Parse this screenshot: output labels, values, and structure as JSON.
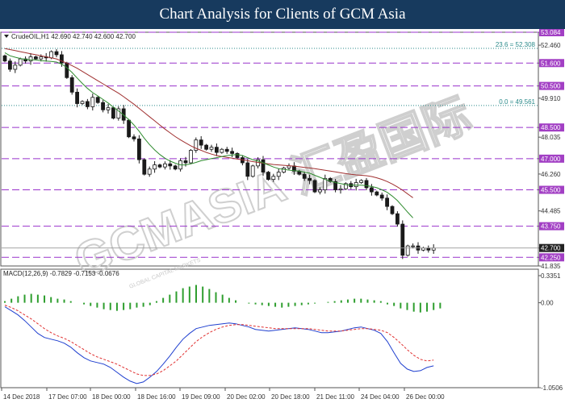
{
  "header": {
    "title": "Chart Analysis for Clients of GCM Asia"
  },
  "watermark": {
    "text": "GCMASIA 汇盈国际",
    "subtext": "GLOBAL CAPITAL MARKETS"
  },
  "colors": {
    "candle": "#1a1a1a",
    "ma_fast": "#2e8b2e",
    "ma_slow": "#a03030",
    "sr_line": "#9933cc",
    "sr_label_bg": "#a23fc4",
    "fib_line": "#2a8a8a",
    "price_label_bg": "#222222",
    "macd_hist": "#2e9e2e",
    "macd_line": "#1f3fcf",
    "macd_signal": "#e03030"
  },
  "chart_data": [
    {
      "type": "candlestick",
      "title": "CrudeOIL,H1  42.690 42.740 42.600 42.700",
      "ylim": [
        41.835,
        53.084
      ],
      "y_ticks": [
        "53.084",
        "52.460",
        "51.600",
        "50.500",
        "49.910",
        "48.500",
        "48.035",
        "47.000",
        "46.260",
        "45.500",
        "44.485",
        "43.750",
        "42.700",
        "42.250",
        "41.835"
      ],
      "x_labels": [
        "14 Dec 2018",
        "17 Dec 07:00",
        "18 Dec 00:00",
        "18 Dec 16:00",
        "19 Dec 09:00",
        "20 Dec 02:00",
        "20 Dec 18:00",
        "21 Dec 11:00",
        "24 Dec 04:00",
        "26 Dec 00:00"
      ],
      "support_resistance": [
        {
          "value": 53.084,
          "label": "53.084"
        },
        {
          "value": 51.6,
          "label": "51.600"
        },
        {
          "value": 50.5,
          "label": "50.500"
        },
        {
          "value": 48.5,
          "label": "48.500"
        },
        {
          "value": 47.0,
          "label": "47.000"
        },
        {
          "value": 45.5,
          "label": "45.500"
        },
        {
          "value": 43.75,
          "label": "43.750"
        },
        {
          "value": 42.25,
          "label": "42.250"
        }
      ],
      "fibonacci": [
        {
          "value": 52.308,
          "label": "23.6 = 52.308"
        },
        {
          "value": 49.561,
          "label": "0.0 = 49.561"
        }
      ],
      "current_price": {
        "value": 42.7,
        "label": "42.700"
      },
      "close": [
        51.7,
        51.3,
        51.5,
        51.8,
        51.7,
        51.9,
        51.8,
        51.9,
        51.85,
        52.15,
        52.0,
        51.6,
        50.9,
        50.2,
        49.65,
        49.75,
        49.5,
        49.95,
        49.7,
        49.35,
        49.45,
        48.95,
        49.4,
        48.85,
        48.05,
        47.95,
        46.95,
        46.25,
        46.5,
        46.7,
        46.6,
        46.75,
        46.65,
        46.5,
        46.9,
        46.8,
        47.4,
        47.9,
        47.65,
        47.45,
        47.55,
        47.3,
        47.45,
        47.35,
        47.25,
        47.05,
        46.8,
        46.15,
        46.65,
        46.95,
        46.35,
        46.0,
        46.15,
        46.35,
        46.55,
        46.65,
        46.4,
        46.25,
        46.05,
        45.95,
        45.4,
        45.5,
        46.05,
        45.9,
        45.5,
        45.55,
        45.8,
        45.65,
        45.85,
        45.95,
        45.6,
        45.4,
        45.25,
        45.1,
        44.7,
        44.35,
        43.85,
        42.35,
        42.8,
        42.8,
        42.6,
        42.7,
        42.6,
        42.7
      ],
      "ma_fast": [
        52.1,
        51.95,
        51.88,
        51.82,
        51.78,
        51.76,
        51.75,
        51.72,
        51.7,
        51.68,
        51.65,
        51.55,
        51.38,
        51.15,
        50.88,
        50.62,
        50.38,
        50.18,
        50.02,
        49.85,
        49.68,
        49.48,
        49.3,
        49.1,
        48.88,
        48.62,
        48.32,
        47.98,
        47.68,
        47.42,
        47.2,
        47.02,
        46.88,
        46.78,
        46.7,
        46.7,
        46.75,
        46.82,
        46.9,
        46.95,
        47.0,
        47.05,
        47.1,
        47.15,
        47.18,
        47.2,
        47.15,
        47.05,
        46.95,
        46.88,
        46.8,
        46.7,
        46.6,
        46.52,
        46.48,
        46.45,
        46.42,
        46.4,
        46.35,
        46.3,
        46.2,
        46.1,
        46.0,
        45.92,
        45.85,
        45.8,
        45.75,
        45.72,
        45.72,
        45.72,
        45.7,
        45.66,
        45.6,
        45.5,
        45.38,
        45.2,
        44.98,
        44.7,
        44.42,
        44.15
      ],
      "ma_slow": [
        52.3,
        52.25,
        52.2,
        52.15,
        52.1,
        52.05,
        52.0,
        51.95,
        51.9,
        51.85,
        51.8,
        51.7,
        51.6,
        51.48,
        51.35,
        51.2,
        51.05,
        50.9,
        50.75,
        50.6,
        50.45,
        50.3,
        50.15,
        49.98,
        49.8,
        49.62,
        49.42,
        49.22,
        49.02,
        48.82,
        48.62,
        48.42,
        48.24,
        48.06,
        47.9,
        47.76,
        47.62,
        47.5,
        47.4,
        47.3,
        47.22,
        47.15,
        47.1,
        47.06,
        47.02,
        46.98,
        46.94,
        46.9,
        46.86,
        46.82,
        46.78,
        46.75,
        46.72,
        46.7,
        46.68,
        46.66,
        46.64,
        46.61,
        46.58,
        46.55,
        46.52,
        46.48,
        46.44,
        46.4,
        46.36,
        46.32,
        46.28,
        46.25,
        46.22,
        46.2,
        46.18,
        46.14,
        46.08,
        46.0,
        45.9,
        45.78,
        45.64,
        45.48,
        45.3,
        45.12
      ]
    },
    {
      "type": "macd",
      "title": "MACD(12,26,9) -0.7829 -0.7153 -0.0676",
      "ylim": [
        -1.0506,
        0.3351
      ],
      "y_ticks": [
        "0.3351",
        "0.00",
        "-1.0506"
      ],
      "histogram": [
        0.02,
        0.05,
        0.08,
        0.1,
        0.11,
        0.1,
        0.09,
        0.07,
        0.05,
        0.04,
        0.02,
        0.0,
        -0.02,
        -0.04,
        -0.06,
        -0.08,
        -0.09,
        -0.1,
        -0.09,
        -0.08,
        -0.06,
        -0.05,
        -0.03,
        0.02,
        0.06,
        0.1,
        0.14,
        0.18,
        0.2,
        0.22,
        0.2,
        0.17,
        0.13,
        0.1,
        0.06,
        0.03,
        0.0,
        -0.01,
        -0.02,
        -0.03,
        -0.04,
        -0.05,
        -0.06,
        -0.05,
        -0.04,
        -0.03,
        -0.02,
        -0.01,
        0.0,
        0.01,
        0.02,
        0.03,
        0.04,
        0.05,
        0.05,
        0.04,
        0.03,
        0.02,
        -0.02,
        -0.04,
        -0.07,
        -0.09,
        -0.11,
        -0.12,
        -0.11,
        -0.09,
        -0.07
      ],
      "macd": [
        -0.05,
        -0.1,
        -0.15,
        -0.22,
        -0.3,
        -0.38,
        -0.43,
        -0.45,
        -0.47,
        -0.5,
        -0.55,
        -0.62,
        -0.68,
        -0.72,
        -0.74,
        -0.76,
        -0.8,
        -0.86,
        -0.92,
        -0.97,
        -1.0,
        -0.98,
        -0.92,
        -0.85,
        -0.76,
        -0.66,
        -0.55,
        -0.45,
        -0.38,
        -0.32,
        -0.3,
        -0.28,
        -0.27,
        -0.26,
        -0.25,
        -0.26,
        -0.28,
        -0.3,
        -0.33,
        -0.34,
        -0.35,
        -0.34,
        -0.33,
        -0.32,
        -0.31,
        -0.32,
        -0.33,
        -0.35,
        -0.37,
        -0.37,
        -0.36,
        -0.35,
        -0.33,
        -0.31,
        -0.3,
        -0.32,
        -0.34,
        -0.38,
        -0.48,
        -0.62,
        -0.75,
        -0.82,
        -0.85,
        -0.84,
        -0.8,
        -0.78
      ],
      "signal": [
        -0.03,
        -0.06,
        -0.1,
        -0.15,
        -0.2,
        -0.26,
        -0.32,
        -0.37,
        -0.41,
        -0.44,
        -0.48,
        -0.53,
        -0.58,
        -0.63,
        -0.67,
        -0.7,
        -0.73,
        -0.76,
        -0.8,
        -0.84,
        -0.88,
        -0.9,
        -0.9,
        -0.88,
        -0.84,
        -0.78,
        -0.72,
        -0.64,
        -0.56,
        -0.48,
        -0.42,
        -0.37,
        -0.33,
        -0.3,
        -0.28,
        -0.27,
        -0.27,
        -0.28,
        -0.29,
        -0.3,
        -0.31,
        -0.32,
        -0.32,
        -0.32,
        -0.32,
        -0.32,
        -0.32,
        -0.33,
        -0.34,
        -0.35,
        -0.35,
        -0.35,
        -0.34,
        -0.33,
        -0.32,
        -0.32,
        -0.33,
        -0.34,
        -0.37,
        -0.43,
        -0.5,
        -0.58,
        -0.65,
        -0.7,
        -0.72,
        -0.71
      ]
    }
  ]
}
